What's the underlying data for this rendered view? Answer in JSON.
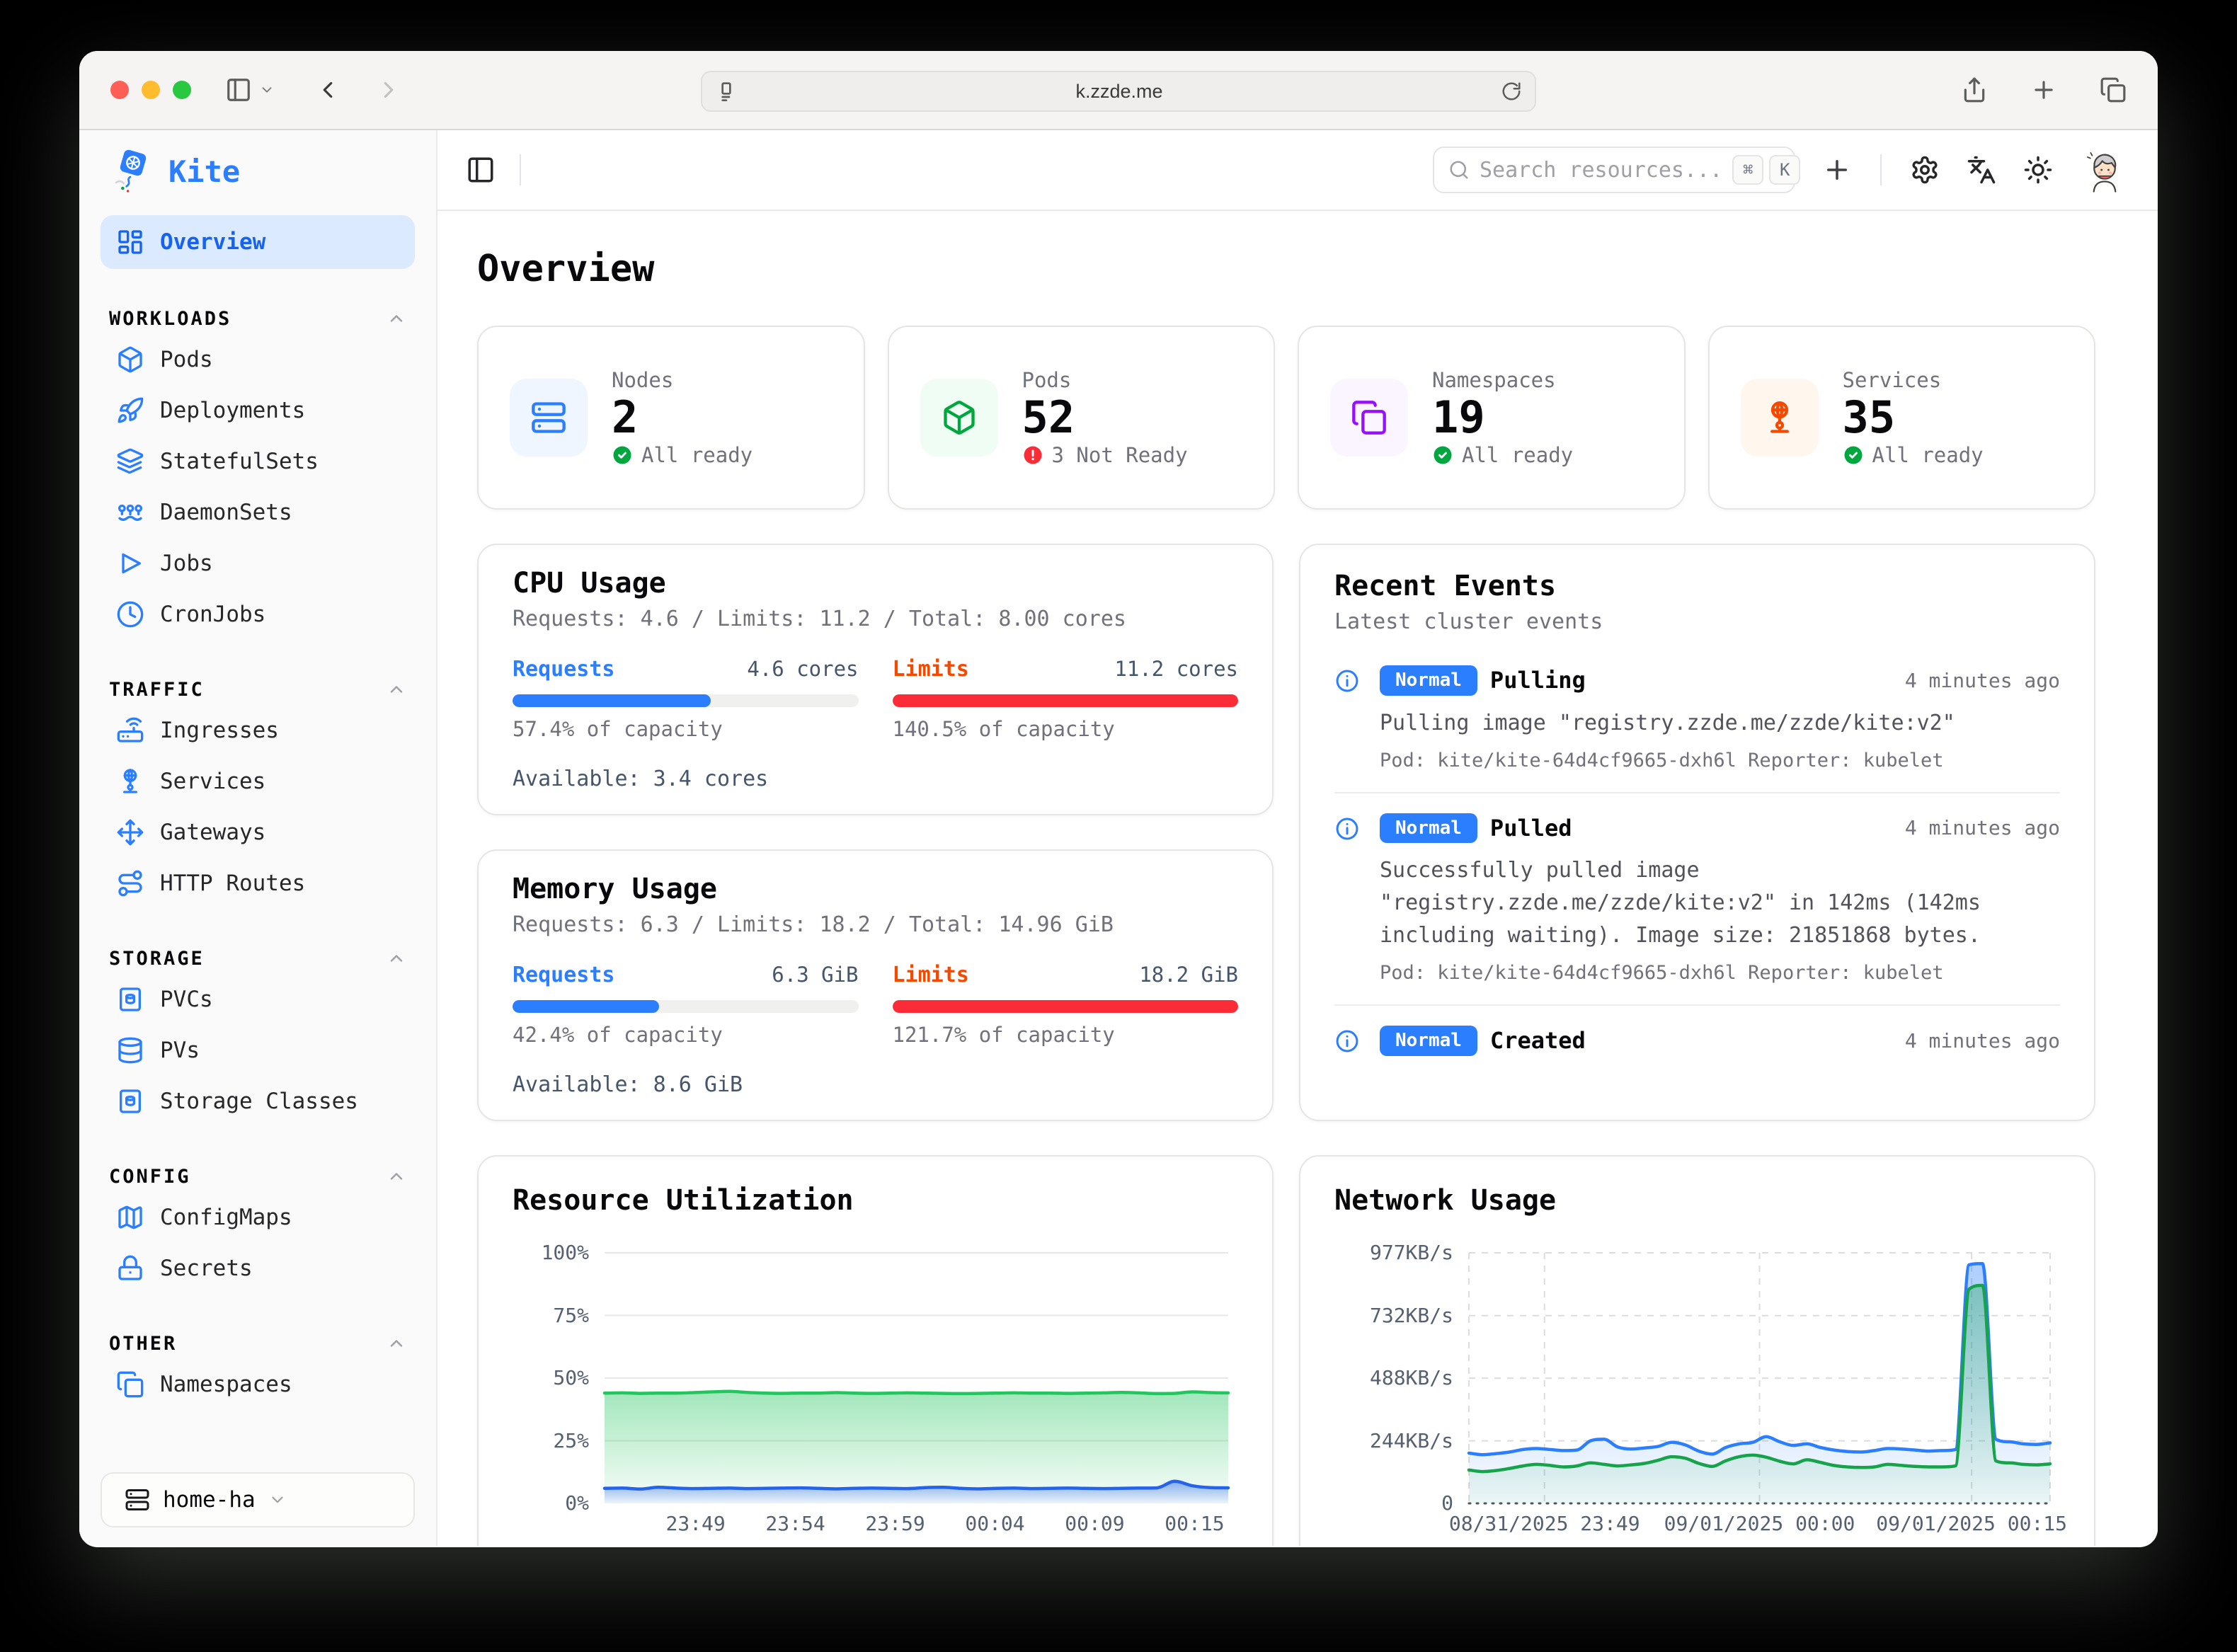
{
  "browser": {
    "url": "k.zzde.me"
  },
  "app_header": {
    "search_placeholder": "Search resources...",
    "shortcut_mod": "⌘",
    "shortcut_key": "K"
  },
  "sidebar": {
    "brand": "Kite",
    "overview_label": "Overview",
    "sections": [
      {
        "title": "WORKLOADS",
        "items": [
          "Pods",
          "Deployments",
          "StatefulSets",
          "DaemonSets",
          "Jobs",
          "CronJobs"
        ]
      },
      {
        "title": "TRAFFIC",
        "items": [
          "Ingresses",
          "Services",
          "Gateways",
          "HTTP Routes"
        ]
      },
      {
        "title": "STORAGE",
        "items": [
          "PVCs",
          "PVs",
          "Storage Classes"
        ]
      },
      {
        "title": "CONFIG",
        "items": [
          "ConfigMaps",
          "Secrets"
        ]
      },
      {
        "title": "OTHER",
        "items": [
          "Namespaces"
        ]
      }
    ],
    "cluster": "home-ha"
  },
  "page_title": "Overview",
  "stats": [
    {
      "label": "Nodes",
      "value": "2",
      "status": "All ready",
      "status_type": "ok"
    },
    {
      "label": "Pods",
      "value": "52",
      "status": "3 Not Ready",
      "status_type": "error"
    },
    {
      "label": "Namespaces",
      "value": "19",
      "status": "All ready",
      "status_type": "ok"
    },
    {
      "label": "Services",
      "value": "35",
      "status": "All ready",
      "status_type": "ok"
    }
  ],
  "cpu_card": {
    "title": "CPU Usage",
    "subtitle": "Requests: 4.6 / Limits: 11.2 / Total: 8.00 cores",
    "requests": {
      "label": "Requests",
      "value": "4.6 cores",
      "percent": 57.4,
      "caption": "57.4% of capacity"
    },
    "limits": {
      "label": "Limits",
      "value": "11.2 cores",
      "percent": 100,
      "caption": "140.5% of capacity"
    },
    "available": "Available: 3.4 cores"
  },
  "memory_card": {
    "title": "Memory Usage",
    "subtitle": "Requests: 6.3 / Limits: 18.2 / Total: 14.96 GiB",
    "requests": {
      "label": "Requests",
      "value": "6.3 GiB",
      "percent": 42.4,
      "caption": "42.4% of capacity"
    },
    "limits": {
      "label": "Limits",
      "value": "18.2 GiB",
      "percent": 100,
      "caption": "121.7% of capacity"
    },
    "available": "Available: 8.6 GiB"
  },
  "events_card": {
    "title": "Recent Events",
    "subtitle": "Latest cluster events",
    "items": [
      {
        "type": "Normal",
        "reason": "Pulling",
        "time": "4 minutes ago",
        "message": "Pulling image \"registry.zzde.me/zzde/kite:v2\"",
        "meta": "Pod: kite/kite-64d4cf9665-dxh6l Reporter: kubelet"
      },
      {
        "type": "Normal",
        "reason": "Pulled",
        "time": "4 minutes ago",
        "message": "Successfully pulled image \"registry.zzde.me/zzde/kite:v2\" in 142ms (142ms including waiting). Image size: 21851868 bytes.",
        "meta": "Pod: kite/kite-64d4cf9665-dxh6l Reporter: kubelet"
      },
      {
        "type": "Normal",
        "reason": "Created",
        "time": "4 minutes ago"
      }
    ]
  },
  "colors": {
    "accent_blue": "#2b7fff",
    "green": "#00a63e",
    "red": "#fb2c36",
    "orange": "#f54900",
    "purple": "#9810fa",
    "active_item_bg": "#dbeafe"
  },
  "chart_data": [
    {
      "id": "resource-utilization",
      "type": "area",
      "title": "Resource Utilization",
      "ylim": [
        0,
        100
      ],
      "y_ticks": [
        {
          "v": 0,
          "label": "0%"
        },
        {
          "v": 25,
          "label": "25%"
        },
        {
          "v": 50,
          "label": "50%"
        },
        {
          "v": 75,
          "label": "75%"
        },
        {
          "v": 100,
          "label": "100%"
        }
      ],
      "x_ticks": [
        {
          "f": 0.146,
          "label": "23:49"
        },
        {
          "f": 0.306,
          "label": "23:54"
        },
        {
          "f": 0.466,
          "label": "23:59"
        },
        {
          "f": 0.626,
          "label": "00:04"
        },
        {
          "f": 0.786,
          "label": "00:09"
        },
        {
          "f": 0.946,
          "label": "00:15"
        }
      ],
      "grid": {
        "h_style": "solid",
        "h_color": "#e8e8e6",
        "h_at": [
          25,
          50,
          75,
          100
        ],
        "v_fracs": [],
        "baseline": "none"
      },
      "layout": {
        "gutter_left": 130,
        "gutter_bottom": 46,
        "right_pad": 14,
        "top_pad": 8
      },
      "series": [
        {
          "id": "green-area-memory-percent",
          "color": "#22c55e",
          "fill_from": 0.42,
          "fill_to": 0.03,
          "values": [
            44,
            44.1,
            43.9,
            44,
            44,
            44.2,
            44.5,
            44.7,
            44.3,
            44,
            43.9,
            44,
            44,
            44.2,
            44,
            43.9,
            44,
            44.1,
            44,
            43.9,
            43.8,
            43.9,
            44,
            44.1,
            44,
            44,
            43.9,
            44,
            44.1,
            44.3,
            44.1,
            43.8,
            43.9,
            44.5,
            44.2,
            44.1
          ]
        },
        {
          "id": "blue-area-cpu-percent",
          "color": "#2563eb",
          "fill_from": 0.5,
          "fill_to": 0.06,
          "values": [
            6,
            6.1,
            5.7,
            6.4,
            6.1,
            5.9,
            6,
            6.1,
            5.9,
            6,
            6.1,
            6.2,
            6,
            5.8,
            6,
            6.1,
            6,
            5.9,
            6.3,
            6.4,
            6,
            5.8,
            6,
            6.1,
            5.9,
            6,
            6.1,
            6,
            5.9,
            6,
            6.1,
            6.2,
            8.8,
            7,
            6.3,
            6.2
          ]
        }
      ]
    },
    {
      "id": "network-usage",
      "type": "area",
      "title": "Network Usage",
      "ylim": [
        0,
        977
      ],
      "y_ticks": [
        {
          "v": 0,
          "label": "0"
        },
        {
          "v": 244,
          "label": "244KB/s"
        },
        {
          "v": 488,
          "label": "488KB/s"
        },
        {
          "v": 732,
          "label": "732KB/s"
        },
        {
          "v": 977,
          "label": "977KB/s"
        }
      ],
      "x_ticks": [
        {
          "f": 0.13,
          "label": "08/31/2025 23:49"
        },
        {
          "f": 0.5,
          "label": "09/01/2025 00:00"
        },
        {
          "f": 0.865,
          "label": "09/01/2025 00:15"
        }
      ],
      "grid": {
        "h_style": "dashed",
        "h_color": "#dcdcda",
        "h_at": [
          244,
          488,
          732,
          977
        ],
        "v_fracs": [
          0,
          0.13,
          0.5,
          0.865,
          1
        ],
        "baseline": "dotted"
      },
      "layout": {
        "gutter_left": 190,
        "gutter_bottom": 46,
        "right_pad": 14,
        "top_pad": 8
      },
      "series": [
        {
          "id": "blue-line-kbps",
          "color": "#2b7fff",
          "fill_from": 0.38,
          "fill_to": 0.04,
          "values": [
            196,
            190,
            194,
            200,
            210,
            214,
            210,
            206,
            208,
            244,
            250,
            220,
            212,
            216,
            222,
            238,
            228,
            204,
            192,
            218,
            232,
            238,
            260,
            240,
            226,
            232,
            218,
            208,
            202,
            200,
            206,
            214,
            212,
            208,
            204,
            206,
            210,
            930,
            935,
            250,
            240,
            232,
            230,
            236
          ]
        },
        {
          "id": "green-line-kbps",
          "color": "#16a34a",
          "fill_from": 0.35,
          "fill_to": 0.05,
          "values": [
            130,
            124,
            128,
            136,
            146,
            152,
            148,
            142,
            146,
            158,
            152,
            146,
            150,
            156,
            168,
            182,
            176,
            156,
            144,
            166,
            182,
            188,
            180,
            164,
            154,
            170,
            160,
            148,
            142,
            140,
            142,
            152,
            148,
            144,
            142,
            142,
            146,
            835,
            850,
            165,
            158,
            152,
            150,
            154
          ]
        }
      ]
    }
  ]
}
